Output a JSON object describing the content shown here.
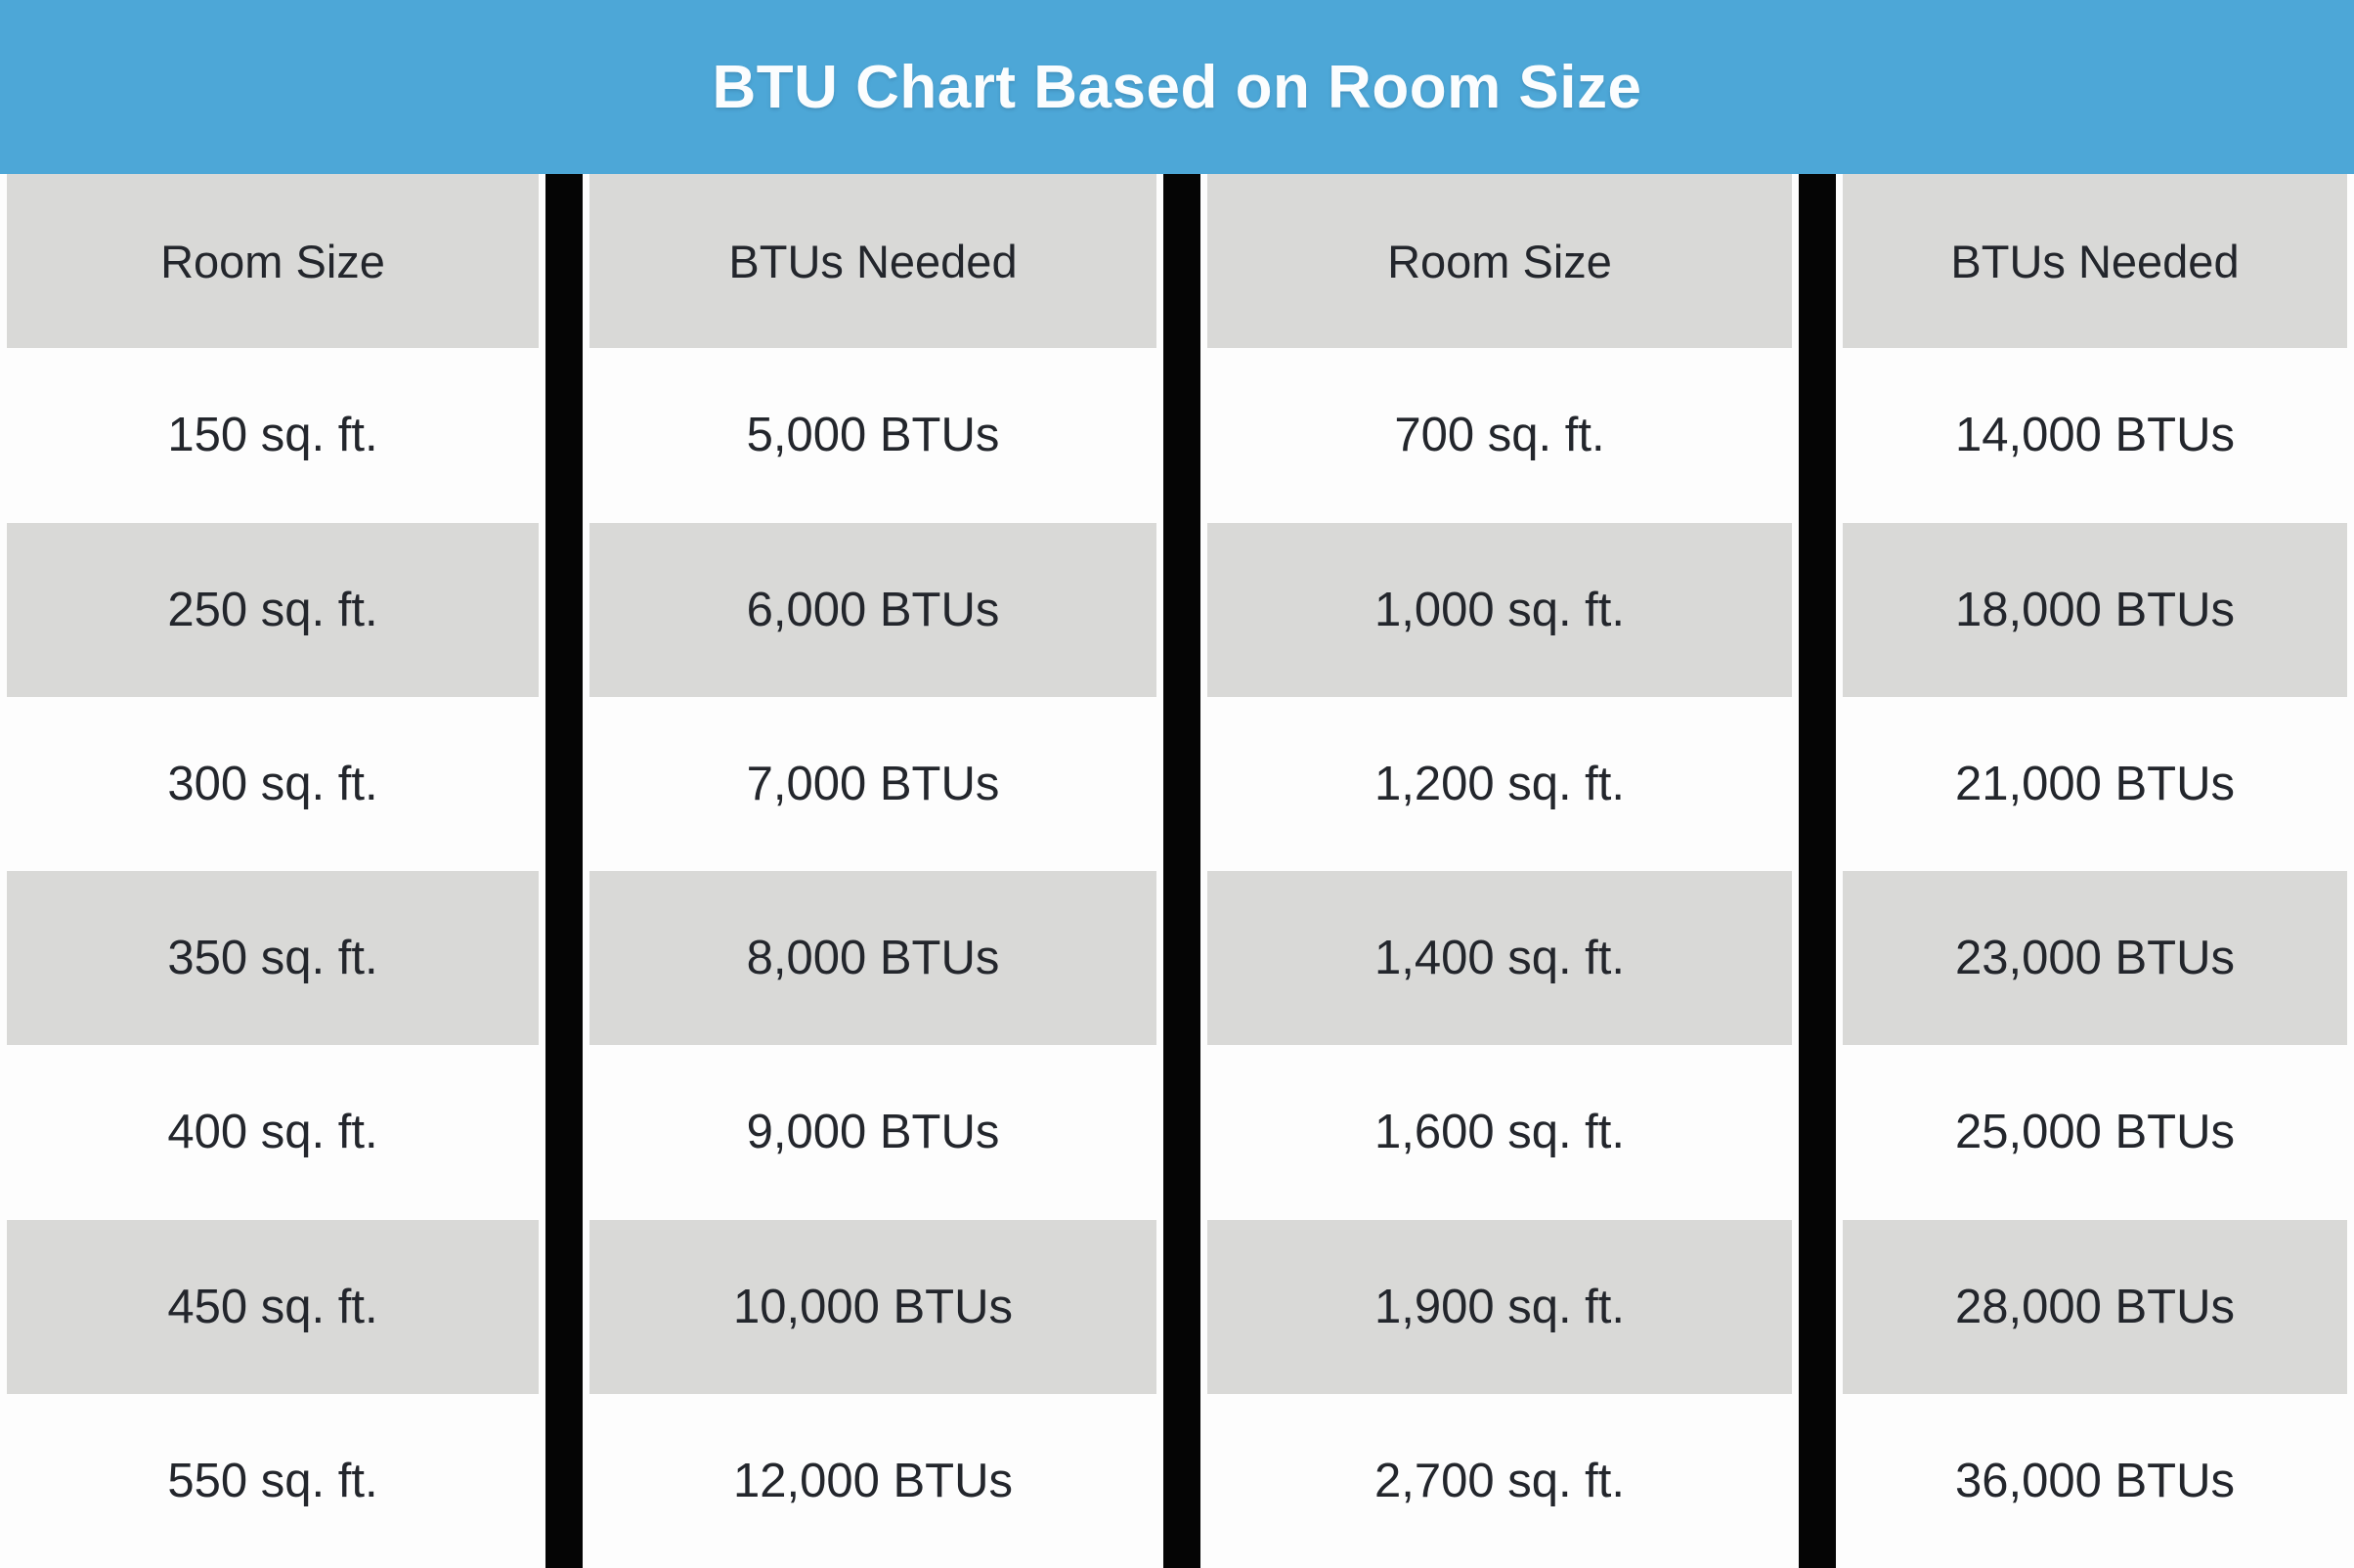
{
  "title": "BTU Chart Based on Room Size",
  "colors": {
    "title_band_blue": "#4da7d7",
    "title_text_white": "#fbfdfe",
    "row_gray": "#d9d9d7",
    "row_white": "#fdfdfd",
    "divider_black": "#050505",
    "cell_text_dark": "#23262c"
  },
  "chart_data": {
    "type": "table",
    "title": "BTU Chart Based on Room Size",
    "columns": [
      "Room Size",
      "BTUs Needed",
      "Room Size",
      "BTUs Needed"
    ],
    "rows": [
      [
        "150 sq. ft.",
        "5,000 BTUs",
        "700 sq. ft.",
        "14,000 BTUs"
      ],
      [
        "250 sq. ft.",
        "6,000 BTUs",
        "1,000 sq. ft.",
        "18,000 BTUs"
      ],
      [
        "300 sq. ft.",
        "7,000 BTUs",
        "1,200 sq. ft.",
        "21,000 BTUs"
      ],
      [
        "350 sq. ft.",
        "8,000 BTUs",
        "1,400 sq. ft.",
        "23,000 BTUs"
      ],
      [
        "400 sq. ft.",
        "9,000 BTUs",
        "1,600 sq. ft.",
        "25,000 BTUs"
      ],
      [
        "450 sq. ft.",
        "10,000 BTUs",
        "1,900 sq. ft.",
        "28,000 BTUs"
      ],
      [
        "550 sq. ft.",
        "12,000 BTUs",
        "2,700 sq. ft.",
        "36,000 BTUs"
      ]
    ],
    "room_btu_pairs_numeric": [
      [
        150,
        5000
      ],
      [
        250,
        6000
      ],
      [
        300,
        7000
      ],
      [
        350,
        8000
      ],
      [
        400,
        9000
      ],
      [
        450,
        10000
      ],
      [
        550,
        12000
      ],
      [
        700,
        14000
      ],
      [
        1000,
        18000
      ],
      [
        1200,
        21000
      ],
      [
        1400,
        23000
      ],
      [
        1600,
        25000
      ],
      [
        1900,
        28000
      ],
      [
        2700,
        36000
      ]
    ],
    "layout_hint": "two side-by-side Room Size / BTUs Needed column pairs separated by thick black vertical bars; alternating gray and white rows"
  }
}
